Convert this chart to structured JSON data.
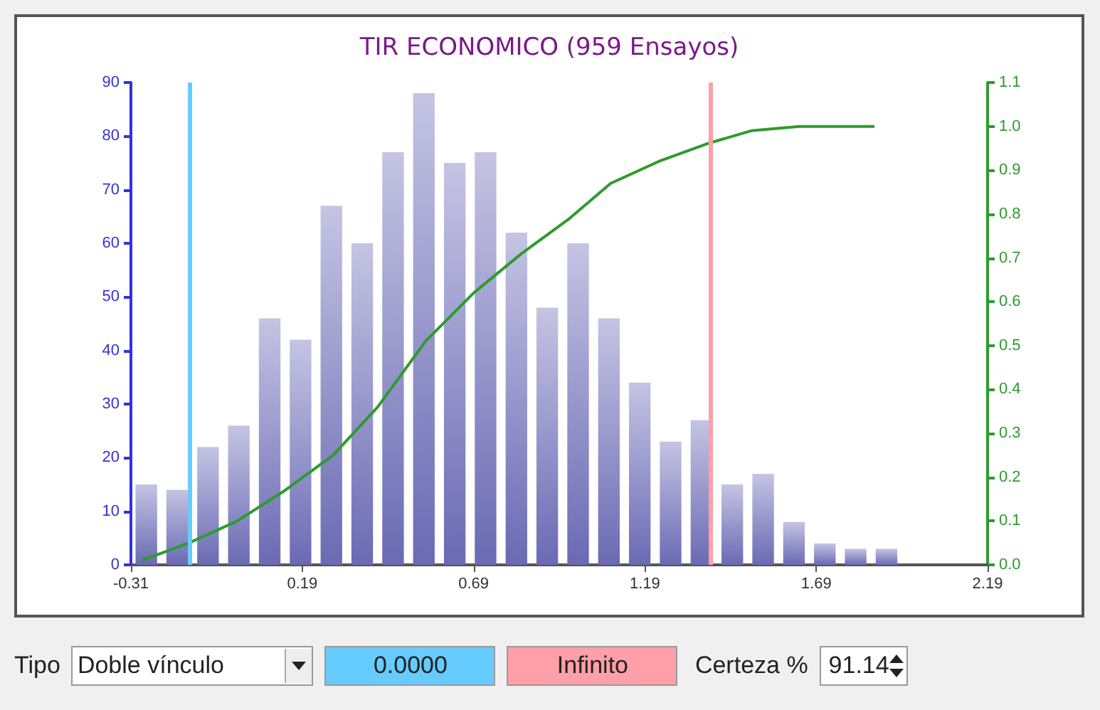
{
  "chart_data": {
    "type": "histogram",
    "title": "TIR ECONOMICO (959 Ensayos)",
    "bins": [
      -0.31,
      -0.22,
      -0.13,
      -0.04,
      0.05,
      0.14,
      0.23,
      0.32,
      0.41,
      0.5,
      0.59,
      0.68,
      0.77,
      0.86,
      0.95,
      1.04,
      1.13,
      1.22,
      1.31,
      1.4,
      1.49,
      1.58,
      1.67,
      1.76,
      1.85,
      1.94
    ],
    "values": [
      15,
      14,
      22,
      26,
      46,
      42,
      67,
      60,
      77,
      88,
      75,
      77,
      62,
      48,
      60,
      46,
      34,
      23,
      27,
      15,
      17,
      8,
      4,
      3,
      3
    ],
    "color": "#6a6ab4",
    "series": [
      {
        "type": "line",
        "axis": "y2",
        "color": "#2e9b2e",
        "x": [
          -0.28,
          -0.14,
          0.0,
          0.14,
          0.28,
          0.41,
          0.55,
          0.69,
          0.83,
          0.97,
          1.09,
          1.23,
          1.37,
          1.5,
          1.64,
          1.86
        ],
        "values": [
          0.01,
          0.05,
          0.1,
          0.17,
          0.25,
          0.36,
          0.51,
          0.62,
          0.71,
          0.79,
          0.87,
          0.92,
          0.96,
          0.99,
          1.0,
          1.0
        ]
      }
    ],
    "xlim": [
      -0.31,
      2.19
    ],
    "xticks": [
      -0.31,
      0.19,
      0.69,
      1.19,
      1.69,
      2.19
    ],
    "ylim": [
      0,
      90
    ],
    "yticks": [
      0,
      10,
      20,
      30,
      40,
      50,
      60,
      70,
      80,
      90
    ],
    "y2lim": [
      0,
      1.1
    ],
    "y2ticks": [
      {
        "value": 0,
        "label": "0.0"
      },
      0.1,
      0.2,
      0.3,
      0.4,
      0.5,
      0.6,
      0.7,
      0.8,
      0.9,
      {
        "value": 1,
        "label": "1.0"
      },
      1.1
    ],
    "ref_lines": [
      {
        "axis": "x",
        "value": -0.135,
        "color": "#66ccff"
      },
      {
        "axis": "x",
        "value": 1.38,
        "color": "#ff9fa8"
      }
    ],
    "grid": false,
    "annotations": [
      "Tipo",
      "Doble vínculo",
      "0.0000",
      "Infinito",
      "Certeza %",
      "91.14"
    ]
  }
}
